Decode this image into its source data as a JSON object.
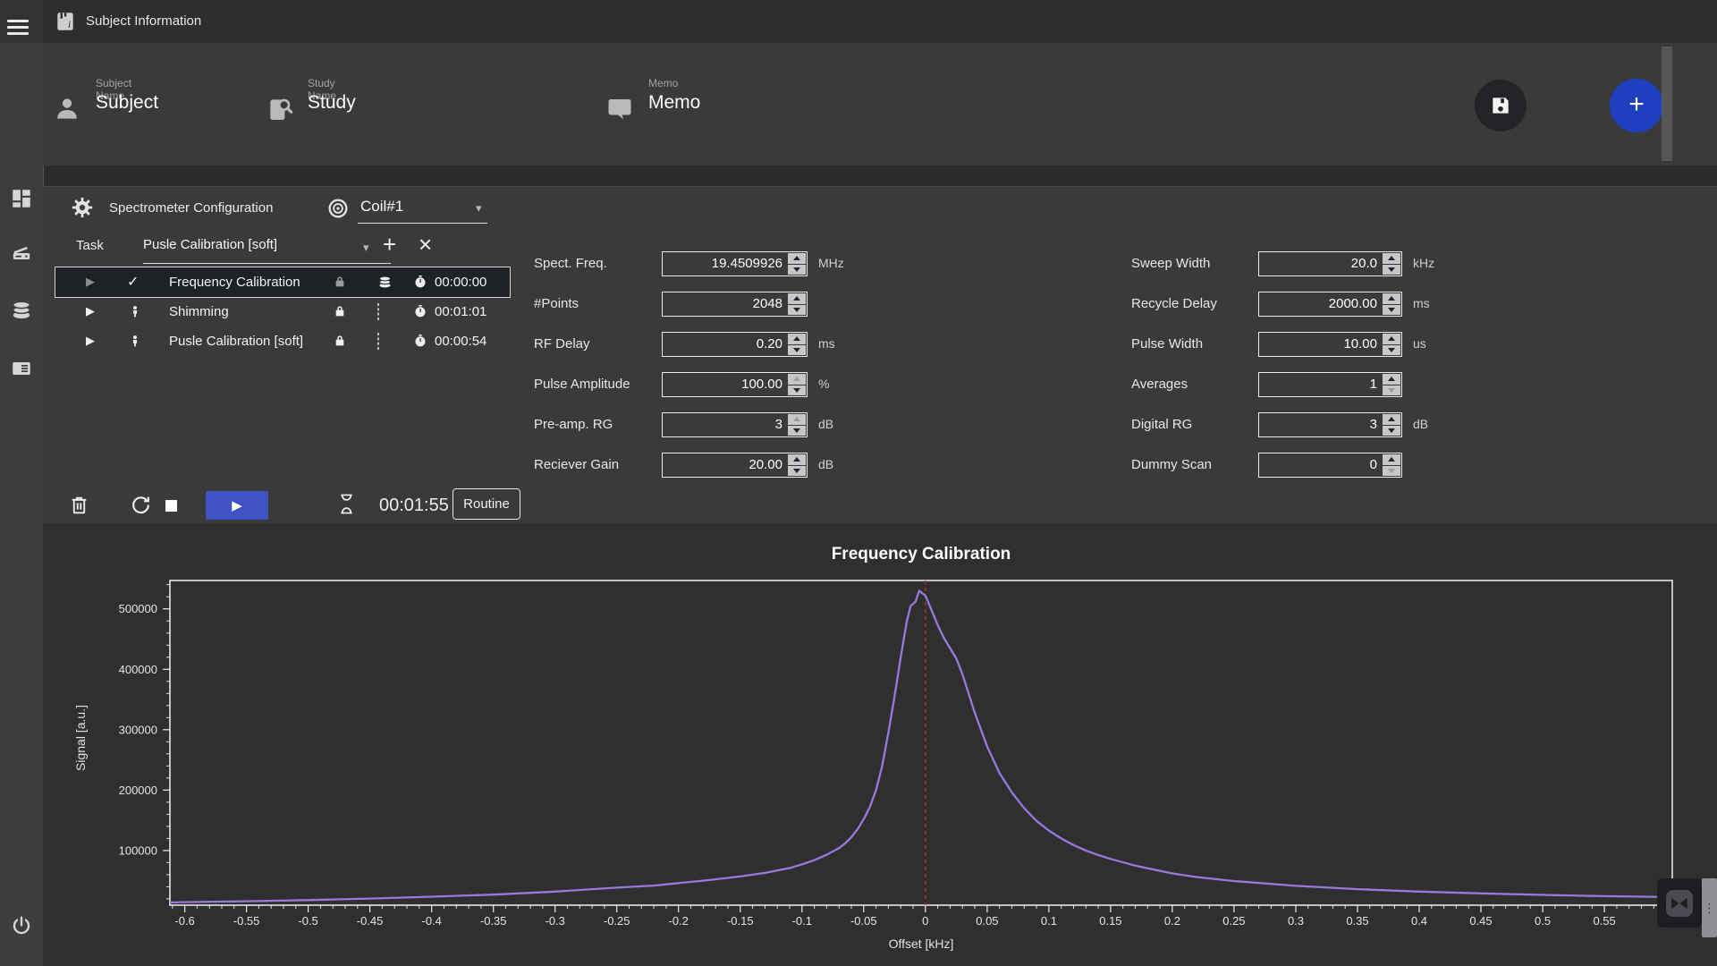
{
  "header": {
    "title": "Subject Information"
  },
  "sidebar": {
    "icons": [
      "menu",
      "dashboard",
      "scanner",
      "database",
      "card-list",
      "power"
    ]
  },
  "subject_bar": {
    "fields": [
      {
        "label": "Subject Name",
        "value": "Subject",
        "icon": "person"
      },
      {
        "label": "Study Name",
        "value": "Study",
        "icon": "study-search"
      },
      {
        "label": "Memo",
        "value": "Memo",
        "icon": "speech-bubble"
      }
    ],
    "save_icon": "floppy-disk",
    "add_icon": "+"
  },
  "config": {
    "title": "Spectrometer Configuration",
    "coil": {
      "icon": "coil",
      "value": "Coil#1"
    },
    "task_selector": {
      "label": "Task",
      "value": "Pusle Calibration [soft]",
      "add_icon": "+",
      "close_icon": "×"
    },
    "tasks": [
      {
        "name": "Frequency Calibration",
        "duration": "00:00:00",
        "status_icon": "check",
        "data_icon": "database",
        "selected": true
      },
      {
        "name": "Shimming",
        "duration": "00:01:01",
        "status_icon": "person",
        "data_icon": "dashed-box",
        "selected": false
      },
      {
        "name": "Pusle Calibration [soft]",
        "duration": "00:00:54",
        "status_icon": "person",
        "data_icon": "dashed-box",
        "selected": false
      }
    ],
    "params_left": [
      {
        "label": "Spect. Freq.",
        "value": "19.4509926",
        "unit": "MHz"
      },
      {
        "label": "#Points",
        "value": "2048",
        "unit": ""
      },
      {
        "label": "RF Delay",
        "value": "0.20",
        "unit": "ms"
      },
      {
        "label": "Pulse Amplitude",
        "value": "100.00",
        "unit": "%"
      },
      {
        "label": "Pre-amp. RG",
        "value": "3",
        "unit": "dB"
      },
      {
        "label": "Reciever Gain",
        "value": "20.00",
        "unit": "dB"
      }
    ],
    "params_right": [
      {
        "label": "Sweep Width",
        "value": "20.0",
        "unit": "kHz"
      },
      {
        "label": "Recycle Delay",
        "value": "2000.00",
        "unit": "ms"
      },
      {
        "label": "Pulse Width",
        "value": "10.00",
        "unit": "us"
      },
      {
        "label": "Averages",
        "value": "1",
        "unit": ""
      },
      {
        "label": "Digital RG",
        "value": "3",
        "unit": "dB"
      },
      {
        "label": "Dummy Scan",
        "value": "0",
        "unit": ""
      }
    ],
    "controls": {
      "icons": [
        "trash",
        "refresh",
        "stop",
        "play",
        "hourglass"
      ],
      "play_glyph": "▶",
      "timer": "00:01:55",
      "routine_label": "Routine"
    }
  },
  "colors": {
    "accent_play_blue": "#4053c4",
    "fab_blue": "#1e3fbf",
    "chart_line_purple": "#9879dd",
    "marker_red": "#c62828"
  },
  "chart_data": {
    "type": "line",
    "title": "Frequency Calibration",
    "xlabel": "Offset [kHz]",
    "ylabel": "Signal [a.u.]",
    "xlim": [
      -0.612,
      0.605
    ],
    "ylim": [
      9500,
      547000
    ],
    "x_ticks": [
      -0.6,
      -0.55,
      -0.5,
      -0.45,
      -0.4,
      -0.35,
      -0.3,
      -0.25,
      -0.2,
      -0.15,
      -0.1,
      -0.05,
      0,
      0.05,
      0.1,
      0.15,
      0.2,
      0.25,
      0.3,
      0.35,
      0.4,
      0.45,
      0.5,
      0.55,
      0.6
    ],
    "x_minor_step": 0.01,
    "y_ticks": [
      100000,
      200000,
      300000,
      400000,
      500000
    ],
    "y_minor_step": 20000,
    "grid": false,
    "legend": "none",
    "marker_line": {
      "x": 0,
      "color": "#c62828",
      "style": "dashed"
    },
    "series": [
      {
        "name": "Frequency Calibration signal",
        "color": "#9879dd",
        "points": [
          [
            -0.63,
            13000
          ],
          [
            -0.6,
            14500
          ],
          [
            -0.55,
            16000
          ],
          [
            -0.5,
            18000
          ],
          [
            -0.45,
            20500
          ],
          [
            -0.4,
            23500
          ],
          [
            -0.35,
            27000
          ],
          [
            -0.3,
            32000
          ],
          [
            -0.25,
            38500
          ],
          [
            -0.22,
            42000
          ],
          [
            -0.2,
            46000
          ],
          [
            -0.18,
            50000
          ],
          [
            -0.15,
            57000
          ],
          [
            -0.13,
            63000
          ],
          [
            -0.11,
            71000
          ],
          [
            -0.1,
            77000
          ],
          [
            -0.09,
            84000
          ],
          [
            -0.08,
            93000
          ],
          [
            -0.07,
            104000
          ],
          [
            -0.065,
            112000
          ],
          [
            -0.06,
            122000
          ],
          [
            -0.055,
            135000
          ],
          [
            -0.05,
            152000
          ],
          [
            -0.045,
            172000
          ],
          [
            -0.04,
            200000
          ],
          [
            -0.035,
            240000
          ],
          [
            -0.03,
            295000
          ],
          [
            -0.025,
            355000
          ],
          [
            -0.02,
            420000
          ],
          [
            -0.015,
            480000
          ],
          [
            -0.012,
            505000
          ],
          [
            -0.008,
            512000
          ],
          [
            -0.005,
            530000
          ],
          [
            0,
            522000
          ],
          [
            0.005,
            498000
          ],
          [
            0.01,
            473000
          ],
          [
            0.015,
            452000
          ],
          [
            0.02,
            435000
          ],
          [
            0.025,
            418000
          ],
          [
            0.03,
            392000
          ],
          [
            0.035,
            360000
          ],
          [
            0.04,
            328000
          ],
          [
            0.045,
            300000
          ],
          [
            0.05,
            272000
          ],
          [
            0.06,
            228000
          ],
          [
            0.07,
            196000
          ],
          [
            0.08,
            170000
          ],
          [
            0.09,
            149000
          ],
          [
            0.1,
            133000
          ],
          [
            0.11,
            120000
          ],
          [
            0.12,
            109000
          ],
          [
            0.13,
            100000
          ],
          [
            0.14,
            92500
          ],
          [
            0.15,
            86000
          ],
          [
            0.17,
            75000
          ],
          [
            0.2,
            62000
          ],
          [
            0.22,
            56000
          ],
          [
            0.25,
            49500
          ],
          [
            0.3,
            41500
          ],
          [
            0.35,
            36000
          ],
          [
            0.4,
            32000
          ],
          [
            0.45,
            29000
          ],
          [
            0.5,
            26500
          ],
          [
            0.55,
            24500
          ],
          [
            0.6,
            23000
          ],
          [
            0.64,
            22000
          ]
        ]
      }
    ]
  }
}
